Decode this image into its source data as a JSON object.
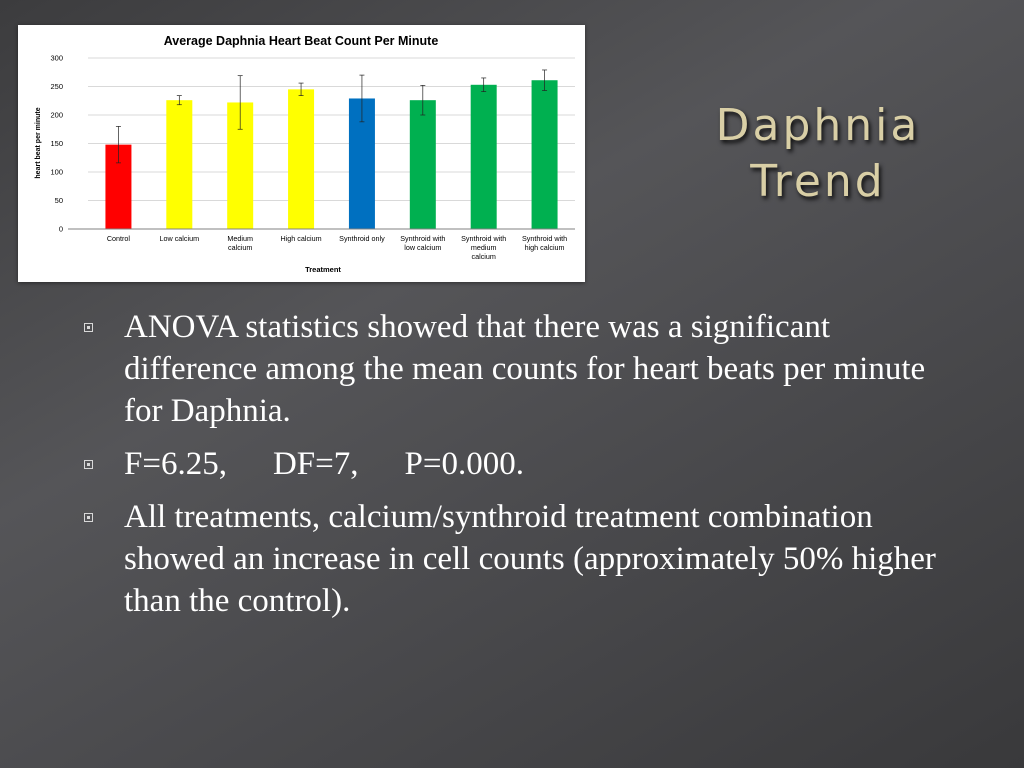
{
  "slide": {
    "title_lines": [
      "Daphnia",
      "Trend"
    ],
    "bullets": [
      "ANOVA statistics showed that there was a significant difference among the mean counts for heart beats per minute for Daphnia.",
      "All treatments, calcium/synthroid treatment combination showed an increase in cell counts (approximately 50% higher than the control)."
    ],
    "stats": {
      "f": "F=6.25,",
      "df": "DF=7,",
      "p": "P=0.000."
    }
  },
  "chart_data": {
    "type": "bar",
    "title": "Average Daphnia Heart Beat Count Per Minute",
    "xlabel": "Treatment",
    "ylabel": "heart beat per minute",
    "ylim": [
      0,
      300
    ],
    "yticks": [
      0,
      50,
      100,
      150,
      200,
      250,
      300
    ],
    "grid": true,
    "categories": [
      [
        "Control"
      ],
      [
        "Low calcium"
      ],
      [
        "Medium",
        "calcium"
      ],
      [
        "High calcium"
      ],
      [
        "Synthroid only"
      ],
      [
        "Synthroid with",
        "low calcium"
      ],
      [
        "Synthroid with",
        "medium",
        "calcium"
      ],
      [
        "Synthroid with",
        "high calcium"
      ]
    ],
    "values": [
      148,
      226,
      222,
      245,
      229,
      226,
      253,
      261
    ],
    "error": [
      32,
      8,
      47,
      11,
      41,
      26,
      12,
      18
    ],
    "colors": [
      "#ff0000",
      "#ffff00",
      "#ffff00",
      "#ffff00",
      "#0070c0",
      "#00b050",
      "#00b050",
      "#00b050"
    ]
  }
}
